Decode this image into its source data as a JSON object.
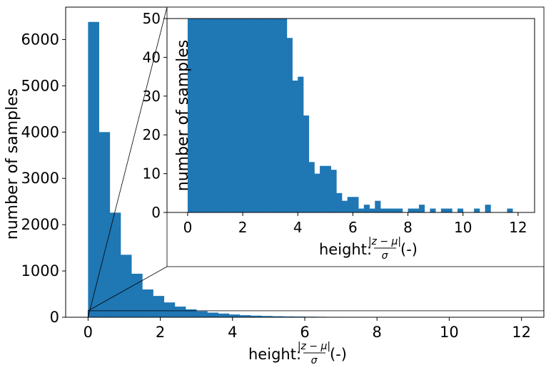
{
  "chart_data": [
    {
      "id": "main",
      "type": "bar",
      "xlabel": "height: |z − μ| / σ (-)",
      "ylabel": "number of samples",
      "xlim": [
        -0.62,
        12.62
      ],
      "ylim": [
        0,
        6700
      ],
      "xticks": [
        0,
        2,
        4,
        6,
        8,
        10,
        12
      ],
      "yticks": [
        0,
        1000,
        2000,
        3000,
        4000,
        5000,
        6000
      ],
      "grid": false,
      "bin_width": 0.3,
      "bin_start": 0,
      "values": [
        6380,
        4000,
        2260,
        1350,
        940,
        600,
        460,
        320,
        230,
        170,
        130,
        100,
        80,
        60,
        45,
        35,
        28,
        22,
        18,
        15,
        12,
        10,
        8,
        6,
        5,
        4,
        3,
        3,
        2,
        2,
        2,
        2,
        1,
        1,
        1,
        1,
        1,
        1,
        1,
        1,
        1
      ]
    },
    {
      "id": "inset",
      "type": "bar",
      "xlabel": "height: |z − μ| / σ (-)",
      "ylabel": "number of samples",
      "xlim": [
        -0.75,
        12.6
      ],
      "ylim": [
        0,
        50
      ],
      "xticks": [
        0,
        2,
        4,
        6,
        8,
        10,
        12
      ],
      "yticks": [
        0,
        10,
        20,
        30,
        40,
        50
      ],
      "grid": false,
      "bin_width": 0.2,
      "bin_start": 0,
      "values": [
        50,
        50,
        50,
        50,
        50,
        50,
        50,
        50,
        50,
        50,
        50,
        50,
        50,
        50,
        50,
        50,
        50,
        50,
        45,
        34,
        35,
        25,
        13,
        10,
        12,
        12,
        11,
        5,
        3,
        4,
        4,
        1,
        2,
        1,
        3,
        1,
        1,
        1,
        1,
        0,
        1,
        1,
        2,
        0,
        1,
        0,
        1,
        1,
        0,
        1,
        0,
        0,
        1,
        0,
        2,
        0,
        0,
        0,
        1,
        0,
        0
      ]
    }
  ],
  "colors": {
    "bar": "#1f77b4",
    "axis": "#000000",
    "background": "#ffffff"
  }
}
